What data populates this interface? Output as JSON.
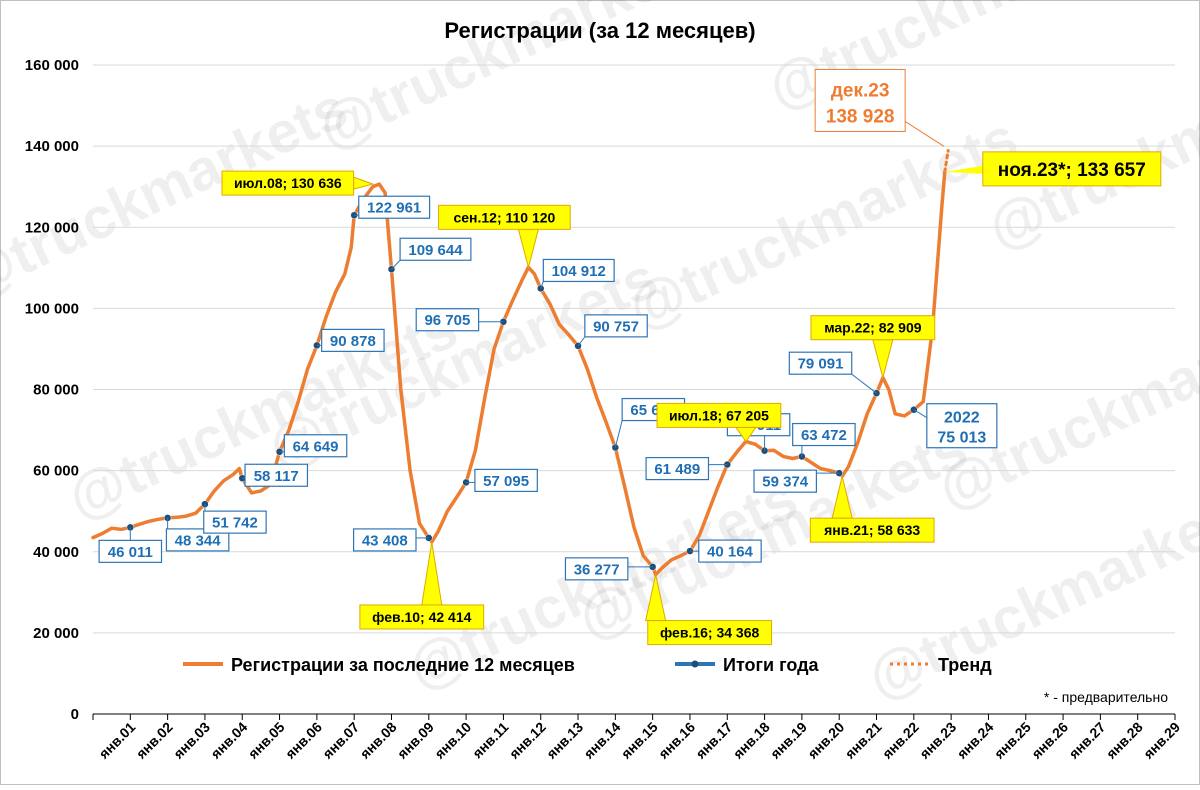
{
  "chart_data": {
    "type": "line",
    "title": "Регистрации (за 12 месяцев)",
    "ylim": [
      0,
      160000
    ],
    "yticks": [
      0,
      20000,
      40000,
      60000,
      80000,
      100000,
      120000,
      140000,
      160000
    ],
    "ytick_labels": [
      "0",
      "20 000",
      "40 000",
      "60 000",
      "80 000",
      "100 000",
      "120 000",
      "140 000",
      "160 000"
    ],
    "xlim": [
      2001,
      2030
    ],
    "xtick_labels": [
      "янв.01",
      "янв.02",
      "янв.03",
      "янв.04",
      "янв.05",
      "янв.06",
      "янв.07",
      "янв.08",
      "янв.09",
      "янв.10",
      "янв.11",
      "янв.12",
      "янв.13",
      "янв.14",
      "янв.15",
      "янв.16",
      "янв.17",
      "янв.18",
      "янв.19",
      "янв.20",
      "янв.21",
      "янв.22",
      "янв.23",
      "янв.24",
      "янв.25",
      "янв.26",
      "янв.27",
      "янв.28",
      "янв.29"
    ],
    "grid": true,
    "legend_placement": "bottom",
    "colors": {
      "series": "#ED7D31",
      "totals": "#2E75B6",
      "marker": "#1F4E79",
      "callout_fill": "#FFFF00",
      "callout_text_orange": "#ED7D31",
      "callout_text_blue": "#1F6FB5"
    },
    "series": [
      {
        "name": "Регистрации за последние 12 месяцев",
        "x": [
          2001.0,
          2001.25,
          2001.5,
          2001.75,
          2002.0,
          2002.25,
          2002.5,
          2002.75,
          2003.0,
          2003.25,
          2003.5,
          2003.75,
          2004.0,
          2004.25,
          2004.5,
          2004.75,
          2004.92,
          2005.0,
          2005.25,
          2005.5,
          2005.75,
          2006.0,
          2006.25,
          2006.5,
          2006.75,
          2007.0,
          2007.25,
          2007.5,
          2007.75,
          2007.92,
          2008.0,
          2008.25,
          2008.5,
          2008.67,
          2008.83,
          2009.0,
          2009.25,
          2009.5,
          2009.75,
          2010.0,
          2010.08,
          2010.25,
          2010.5,
          2010.75,
          2011.0,
          2011.25,
          2011.5,
          2011.75,
          2012.0,
          2012.25,
          2012.5,
          2012.67,
          2012.83,
          2013.0,
          2013.25,
          2013.5,
          2013.75,
          2014.0,
          2014.25,
          2014.5,
          2014.75,
          2015.0,
          2015.25,
          2015.5,
          2015.75,
          2016.0,
          2016.08,
          2016.25,
          2016.5,
          2016.75,
          2017.0,
          2017.25,
          2017.5,
          2017.75,
          2018.0,
          2018.25,
          2018.5,
          2018.75,
          2019.0,
          2019.25,
          2019.5,
          2019.75,
          2020.0,
          2020.25,
          2020.5,
          2020.75,
          2021.0,
          2021.08,
          2021.25,
          2021.5,
          2021.75,
          2022.0,
          2022.17,
          2022.33,
          2022.5,
          2022.75,
          2023.0,
          2023.25,
          2023.5,
          2023.75,
          2023.83
        ],
        "y": [
          43500,
          44500,
          45800,
          45500,
          46011,
          46800,
          47500,
          48000,
          48344,
          48500,
          48800,
          49500,
          51742,
          55000,
          57500,
          59000,
          60500,
          58117,
          54500,
          55000,
          56500,
          64649,
          70000,
          77000,
          85000,
          90878,
          98000,
          104000,
          108500,
          115000,
          122961,
          127000,
          130000,
          130636,
          128500,
          109644,
          80000,
          60000,
          47000,
          43408,
          42414,
          45000,
          50000,
          53500,
          57095,
          65000,
          78000,
          90000,
          96705,
          102000,
          107000,
          110120,
          108500,
          104912,
          101000,
          96000,
          93500,
          90757,
          85000,
          78000,
          72000,
          65689,
          56000,
          46000,
          39000,
          36277,
          34368,
          36000,
          38000,
          39000,
          40164,
          44000,
          50000,
          56000,
          61489,
          64500,
          67205,
          66500,
          64911,
          65000,
          63500,
          63000,
          63472,
          62000,
          60500,
          60000,
          59374,
          58633,
          61000,
          67000,
          74000,
          79091,
          82909,
          80000,
          74000,
          73500,
          75013,
          77000,
          95000,
          125000,
          133657
        ]
      },
      {
        "name": "Итоги года",
        "x": [
          2002,
          2003,
          2004,
          2005,
          2006,
          2007,
          2008,
          2009,
          2010,
          2011,
          2012,
          2013,
          2014,
          2015,
          2016,
          2017,
          2018,
          2019,
          2020,
          2021,
          2022,
          2023
        ],
        "y": [
          46011,
          48344,
          51742,
          58117,
          64649,
          90878,
          122961,
          109644,
          43408,
          57095,
          96705,
          104912,
          90757,
          65689,
          36277,
          40164,
          61489,
          64911,
          63472,
          59374,
          79091,
          75013
        ]
      },
      {
        "name": "Тренд",
        "x": [
          2023.83,
          2023.92
        ],
        "y": [
          133657,
          138928
        ]
      }
    ],
    "annotations": {
      "totals": [
        {
          "text": "46 011",
          "x": 2002,
          "y": 46011
        },
        {
          "text": "48 344",
          "x": 2003,
          "y": 48344
        },
        {
          "text": "51 742",
          "x": 2004,
          "y": 51742
        },
        {
          "text": "58 117",
          "x": 2005,
          "y": 58117
        },
        {
          "text": "64 649",
          "x": 2006,
          "y": 64649
        },
        {
          "text": "90 878",
          "x": 2007,
          "y": 90878
        },
        {
          "text": "122 961",
          "x": 2008,
          "y": 122961
        },
        {
          "text": "109 644",
          "x": 2009,
          "y": 109644
        },
        {
          "text": "43 408",
          "x": 2010,
          "y": 43408
        },
        {
          "text": "57 095",
          "x": 2011,
          "y": 57095
        },
        {
          "text": "96 705",
          "x": 2012,
          "y": 96705
        },
        {
          "text": "104 912",
          "x": 2013,
          "y": 104912
        },
        {
          "text": "90 757",
          "x": 2014,
          "y": 90757
        },
        {
          "text": "65 689",
          "x": 2015,
          "y": 65689
        },
        {
          "text": "36 277",
          "x": 2016,
          "y": 36277
        },
        {
          "text": "40 164",
          "x": 2017,
          "y": 40164
        },
        {
          "text": "61 489",
          "x": 2018,
          "y": 61489
        },
        {
          "text": "64 911",
          "x": 2019,
          "y": 64911
        },
        {
          "text": "63 472",
          "x": 2020,
          "y": 63472
        },
        {
          "text": "59 374",
          "x": 2021,
          "y": 59374
        },
        {
          "text": "79 091",
          "x": 2022,
          "y": 79091
        }
      ],
      "total_2022": {
        "year": "2022",
        "value": "75 013",
        "x": 2023,
        "y": 75013
      },
      "extremes": [
        {
          "text": "июл.08; 130 636",
          "x": 2008.5,
          "y": 130636
        },
        {
          "text": "фев.10; 42 414",
          "x": 2010.08,
          "y": 42414
        },
        {
          "text": "сен.12; 110 120",
          "x": 2012.67,
          "y": 110120
        },
        {
          "text": "фев.16; 34 368",
          "x": 2016.08,
          "y": 34368
        },
        {
          "text": "июл.18; 67 205",
          "x": 2018.5,
          "y": 67205
        },
        {
          "text": "янв.21; 58 633",
          "x": 2021.08,
          "y": 58633
        },
        {
          "text": "мар.22; 82 909",
          "x": 2022.17,
          "y": 82909
        }
      ],
      "latest": {
        "text": "ноя.23*; 133 657",
        "x": 2023.83,
        "y": 133657
      },
      "trend_label": {
        "line1": "дек.23",
        "line2": "138 928",
        "x": 2023.92,
        "y": 138928
      }
    },
    "footnote": "* - предварительно"
  },
  "watermark": "@truckmarkets"
}
